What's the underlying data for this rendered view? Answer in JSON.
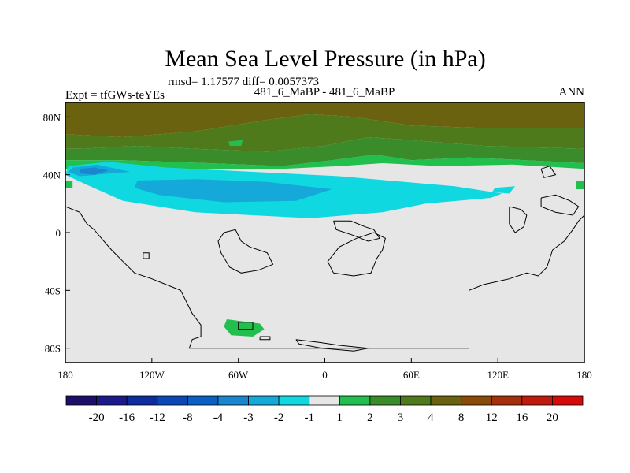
{
  "chart_data": {
    "type": "heatmap",
    "title": "Mean Sea Level Pressure (in hPa)",
    "stats_line": "rmsd= 1.17577 diff= 0.0057373",
    "left_label": "Expt = tfGWs-teYEs",
    "center_label": "481_6_MaBP - 481_6_MaBP",
    "right_label": "ANN",
    "xlim": [
      -180,
      180
    ],
    "ylim": [
      -90,
      90
    ],
    "x_ticks": [
      {
        "value": -180,
        "label": "180"
      },
      {
        "value": -120,
        "label": "120W"
      },
      {
        "value": -60,
        "label": "60W"
      },
      {
        "value": 0,
        "label": "0"
      },
      {
        "value": 60,
        "label": "60E"
      },
      {
        "value": 120,
        "label": "120E"
      },
      {
        "value": 180,
        "label": "180"
      }
    ],
    "y_ticks": [
      {
        "value": 80,
        "label": "80N"
      },
      {
        "value": 40,
        "label": "40N"
      },
      {
        "value": 0,
        "label": "0"
      },
      {
        "value": -40,
        "label": "40S"
      },
      {
        "value": -80,
        "label": "80S"
      }
    ],
    "colorbar": {
      "levels": [
        "-20",
        "-16",
        "-12",
        "-8",
        "-4",
        "-3",
        "-2",
        "-1",
        "1",
        "2",
        "3",
        "4",
        "8",
        "12",
        "16",
        "20"
      ],
      "colors": [
        "#1b0f6b",
        "#1a1a8c",
        "#0d2c9e",
        "#0a48b8",
        "#0a5fc4",
        "#1a86d0",
        "#14a9d8",
        "#10d8e0",
        "#e6e6e6",
        "#22bf4e",
        "#3a8c2b",
        "#4f7a1c",
        "#6b6210",
        "#8a4a08",
        "#a5300b",
        "#c01a0d",
        "#d60a0a"
      ]
    },
    "regions": [
      {
        "name": "north-band-4to8",
        "level_index": 12,
        "points": [
          [
            -180,
            90
          ],
          [
            180,
            90
          ],
          [
            180,
            72
          ],
          [
            120,
            72
          ],
          [
            60,
            74
          ],
          [
            20,
            80
          ],
          [
            -10,
            82
          ],
          [
            -40,
            78
          ],
          [
            -90,
            70
          ],
          [
            -140,
            66
          ],
          [
            -180,
            68
          ]
        ]
      },
      {
        "name": "north-band-3to4",
        "level_index": 11,
        "points": [
          [
            -180,
            68
          ],
          [
            -140,
            66
          ],
          [
            -90,
            70
          ],
          [
            -40,
            78
          ],
          [
            -10,
            82
          ],
          [
            20,
            80
          ],
          [
            60,
            74
          ],
          [
            120,
            72
          ],
          [
            180,
            72
          ],
          [
            180,
            58
          ],
          [
            110,
            60
          ],
          [
            60,
            64
          ],
          [
            30,
            66
          ],
          [
            0,
            60
          ],
          [
            -40,
            56
          ],
          [
            -90,
            58
          ],
          [
            -130,
            60
          ],
          [
            -170,
            58
          ],
          [
            -180,
            58
          ]
        ]
      },
      {
        "name": "north-band-2to3",
        "level_index": 10,
        "points": [
          [
            -180,
            58
          ],
          [
            -170,
            58
          ],
          [
            -130,
            60
          ],
          [
            -90,
            58
          ],
          [
            -40,
            56
          ],
          [
            0,
            60
          ],
          [
            30,
            66
          ],
          [
            60,
            64
          ],
          [
            110,
            60
          ],
          [
            180,
            58
          ],
          [
            180,
            48
          ],
          [
            100,
            52
          ],
          [
            60,
            50
          ],
          [
            35,
            54
          ],
          [
            5,
            50
          ],
          [
            -30,
            46
          ],
          [
            -80,
            48
          ],
          [
            -140,
            50
          ],
          [
            -180,
            50
          ]
        ]
      },
      {
        "name": "north-band-1to2",
        "level_index": 9,
        "points": [
          [
            -180,
            50
          ],
          [
            -140,
            50
          ],
          [
            -80,
            48
          ],
          [
            -30,
            46
          ],
          [
            5,
            50
          ],
          [
            35,
            54
          ],
          [
            60,
            50
          ],
          [
            100,
            52
          ],
          [
            180,
            48
          ],
          [
            180,
            44
          ],
          [
            130,
            47
          ],
          [
            80,
            46
          ],
          [
            40,
            48
          ],
          [
            10,
            46
          ],
          [
            -30,
            44
          ],
          [
            -80,
            44
          ],
          [
            -140,
            42
          ],
          [
            -180,
            44
          ]
        ]
      },
      {
        "name": "low-outer-minus1",
        "level_index": 7,
        "points": [
          [
            -178,
            46
          ],
          [
            -150,
            49
          ],
          [
            -110,
            45
          ],
          [
            -50,
            42
          ],
          [
            10,
            39
          ],
          [
            90,
            32
          ],
          [
            123,
            27
          ],
          [
            115,
            24
          ],
          [
            70,
            20
          ],
          [
            40,
            14
          ],
          [
            -10,
            10
          ],
          [
            -90,
            14
          ],
          [
            -140,
            22
          ],
          [
            -165,
            33
          ],
          [
            -180,
            40
          ]
        ]
      },
      {
        "name": "low-mid-minus2",
        "level_index": 6,
        "points": [
          [
            -175,
            45
          ],
          [
            -158,
            47
          ],
          [
            -135,
            42
          ],
          [
            -170,
            39
          ],
          [
            -178,
            42
          ]
        ]
      },
      {
        "name": "low-east-minus2",
        "level_index": 6,
        "points": [
          [
            -130,
            36
          ],
          [
            -90,
            37
          ],
          [
            -40,
            35
          ],
          [
            5,
            30
          ],
          [
            -20,
            22
          ],
          [
            -70,
            21
          ],
          [
            -115,
            26
          ],
          [
            -132,
            31
          ]
        ]
      },
      {
        "name": "low-core-minus3",
        "level_index": 5,
        "points": [
          [
            -170,
            44
          ],
          [
            -160,
            45
          ],
          [
            -150,
            43
          ],
          [
            -160,
            40
          ],
          [
            -170,
            41
          ]
        ]
      },
      {
        "name": "small-patch-east",
        "level_index": 7,
        "points": [
          [
            118,
            31
          ],
          [
            132,
            32
          ],
          [
            128,
            27
          ],
          [
            116,
            28
          ]
        ]
      },
      {
        "name": "south-patch-plus1",
        "level_index": 9,
        "points": [
          [
            -68,
            -60
          ],
          [
            -45,
            -63
          ],
          [
            -42,
            -67
          ],
          [
            -50,
            -72
          ],
          [
            -65,
            -71
          ],
          [
            -70,
            -65
          ]
        ]
      },
      {
        "name": "east-edge-plus1",
        "level_index": 9,
        "points": [
          [
            174,
            36
          ],
          [
            180,
            36
          ],
          [
            180,
            30
          ],
          [
            174,
            30
          ]
        ]
      },
      {
        "name": "west-edge-plus1",
        "level_index": 9,
        "points": [
          [
            -180,
            31
          ],
          [
            -175,
            31
          ],
          [
            -175,
            36
          ],
          [
            -180,
            36
          ]
        ]
      },
      {
        "name": "small-patch-north",
        "level_index": 9,
        "points": [
          [
            -67,
            63
          ],
          [
            -57,
            64
          ],
          [
            -58,
            60
          ],
          [
            -66,
            60
          ]
        ]
      }
    ],
    "coastlines": [
      [
        [
          -180,
          18
        ],
        [
          -170,
          14
        ],
        [
          -165,
          6
        ],
        [
          -160,
          2
        ],
        [
          -155,
          -4
        ],
        [
          -148,
          -12
        ],
        [
          -140,
          -20
        ],
        [
          -132,
          -28
        ],
        [
          -120,
          -32
        ],
        [
          -110,
          -36
        ],
        [
          -100,
          -40
        ],
        [
          -96,
          -48
        ],
        [
          -92,
          -56
        ],
        [
          -86,
          -64
        ],
        [
          -86,
          -72
        ],
        [
          -92,
          -74
        ],
        [
          -94,
          -80
        ],
        [
          -70,
          -80
        ],
        [
          -40,
          -80
        ],
        [
          0,
          -80
        ],
        [
          40,
          -80
        ],
        [
          80,
          -80
        ],
        [
          100,
          -80
        ]
      ],
      [
        [
          -70,
          0
        ],
        [
          -62,
          2
        ],
        [
          -58,
          -6
        ],
        [
          -52,
          -10
        ],
        [
          -40,
          -14
        ],
        [
          -36,
          -22
        ],
        [
          -46,
          -26
        ],
        [
          -58,
          -28
        ],
        [
          -66,
          -24
        ],
        [
          -72,
          -14
        ],
        [
          -74,
          -6
        ],
        [
          -70,
          0
        ]
      ],
      [
        [
          6,
          -28
        ],
        [
          20,
          -30
        ],
        [
          32,
          -28
        ],
        [
          36,
          -18
        ],
        [
          40,
          -12
        ],
        [
          42,
          -4
        ],
        [
          34,
          0
        ],
        [
          22,
          -4
        ],
        [
          10,
          -10
        ],
        [
          2,
          -20
        ],
        [
          6,
          -28
        ]
      ],
      [
        [
          6,
          8
        ],
        [
          18,
          8
        ],
        [
          28,
          4
        ],
        [
          34,
          2
        ],
        [
          38,
          -4
        ],
        [
          30,
          -6
        ],
        [
          20,
          -2
        ],
        [
          8,
          2
        ],
        [
          6,
          8
        ]
      ],
      [
        [
          100,
          -40
        ],
        [
          110,
          -36
        ],
        [
          128,
          -32
        ],
        [
          140,
          -28
        ],
        [
          148,
          -30
        ],
        [
          154,
          -24
        ],
        [
          158,
          -12
        ],
        [
          166,
          -6
        ],
        [
          172,
          2
        ],
        [
          176,
          8
        ],
        [
          180,
          12
        ]
      ],
      [
        [
          128,
          18
        ],
        [
          136,
          16
        ],
        [
          140,
          12
        ],
        [
          138,
          4
        ],
        [
          132,
          0
        ],
        [
          128,
          6
        ],
        [
          128,
          18
        ]
      ],
      [
        [
          150,
          24
        ],
        [
          160,
          26
        ],
        [
          170,
          22
        ],
        [
          176,
          18
        ],
        [
          172,
          12
        ],
        [
          160,
          14
        ],
        [
          150,
          18
        ],
        [
          150,
          24
        ]
      ],
      [
        [
          -126,
          -14
        ],
        [
          -122,
          -14
        ],
        [
          -122,
          -18
        ],
        [
          -126,
          -18
        ],
        [
          -126,
          -14
        ]
      ],
      [
        [
          -60,
          -62
        ],
        [
          -50,
          -62
        ],
        [
          -50,
          -67
        ],
        [
          -60,
          -67
        ],
        [
          -60,
          -62
        ]
      ],
      [
        [
          -45,
          -72
        ],
        [
          -38,
          -72
        ],
        [
          -38,
          -74
        ],
        [
          -45,
          -74
        ],
        [
          -45,
          -72
        ]
      ],
      [
        [
          -20,
          -74
        ],
        [
          -4,
          -76
        ],
        [
          10,
          -78
        ],
        [
          30,
          -80
        ],
        [
          20,
          -82
        ],
        [
          -2,
          -80
        ],
        [
          -18,
          -77
        ],
        [
          -20,
          -74
        ]
      ],
      [
        [
          150,
          44
        ],
        [
          156,
          46
        ],
        [
          160,
          40
        ],
        [
          152,
          38
        ],
        [
          150,
          44
        ]
      ]
    ]
  }
}
